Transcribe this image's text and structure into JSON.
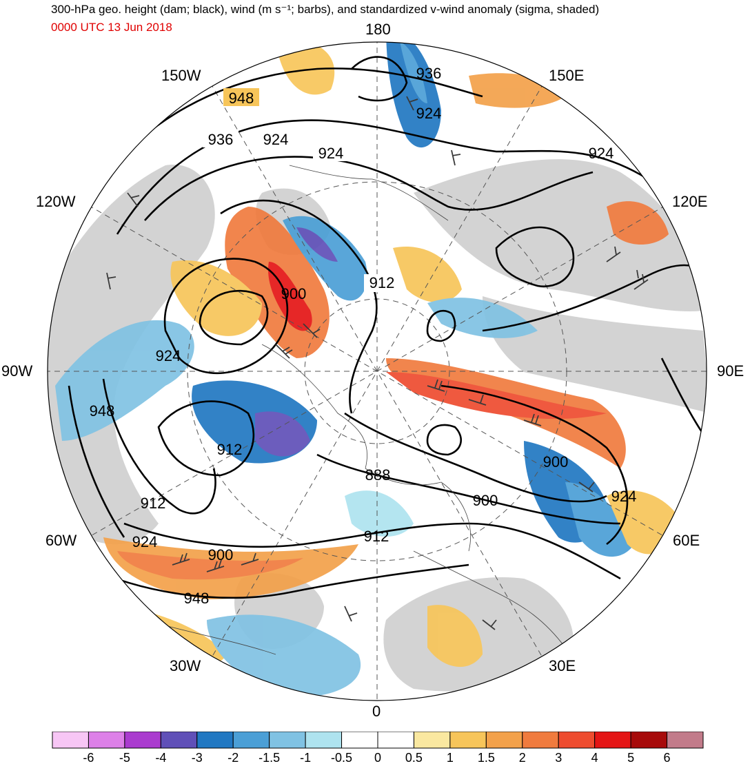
{
  "header": {
    "title": "300-hPa geo. height (dam; black), wind (m s⁻¹; barbs), and standardized v-wind anomaly (sigma, shaded)",
    "timestamp": "0000 UTC 13 Jun 2018",
    "timestamp_color": "#e00000"
  },
  "map": {
    "projection": "north polar stereographic",
    "longitude_labels": {
      "lon_180": "180",
      "lon_150W": "150W",
      "lon_150E": "150E",
      "lon_120W": "120W",
      "lon_120E": "120E",
      "lon_90W": "90W",
      "lon_90E": "90E",
      "lon_60W": "60W",
      "lon_60E": "60E",
      "lon_30W": "30W",
      "lon_30E": "30E",
      "lon_0": "0"
    },
    "contour_labels": [
      "948",
      "936",
      "924",
      "924",
      "924",
      "936",
      "924",
      "912",
      "900",
      "924",
      "948",
      "912",
      "888",
      "900",
      "912",
      "912",
      "924",
      "900",
      "924",
      "900",
      "948"
    ],
    "colors": {
      "land": "#d3d3d3",
      "ocean": "#ffffff",
      "contour": "#000000",
      "barb": "#3a3a3a"
    }
  },
  "colorbar": {
    "labels": [
      "-6",
      "-5",
      "-4",
      "-3",
      "-2",
      "-1.5",
      "-1",
      "-0.5",
      "0",
      "0.5",
      "1",
      "1.5",
      "2",
      "3",
      "4",
      "5",
      "6"
    ],
    "colors": [
      "#f7c6f5",
      "#dd80e8",
      "#aa3bcf",
      "#6050b8",
      "#2178c2",
      "#4b9fd6",
      "#80c2e3",
      "#aee3ef",
      "#ffffff",
      "#ffffff",
      "#fae8a0",
      "#f7c55a",
      "#f3a14a",
      "#f07b3e",
      "#ee4c2f",
      "#e41515",
      "#a70a0a",
      "#c27b8a"
    ]
  }
}
